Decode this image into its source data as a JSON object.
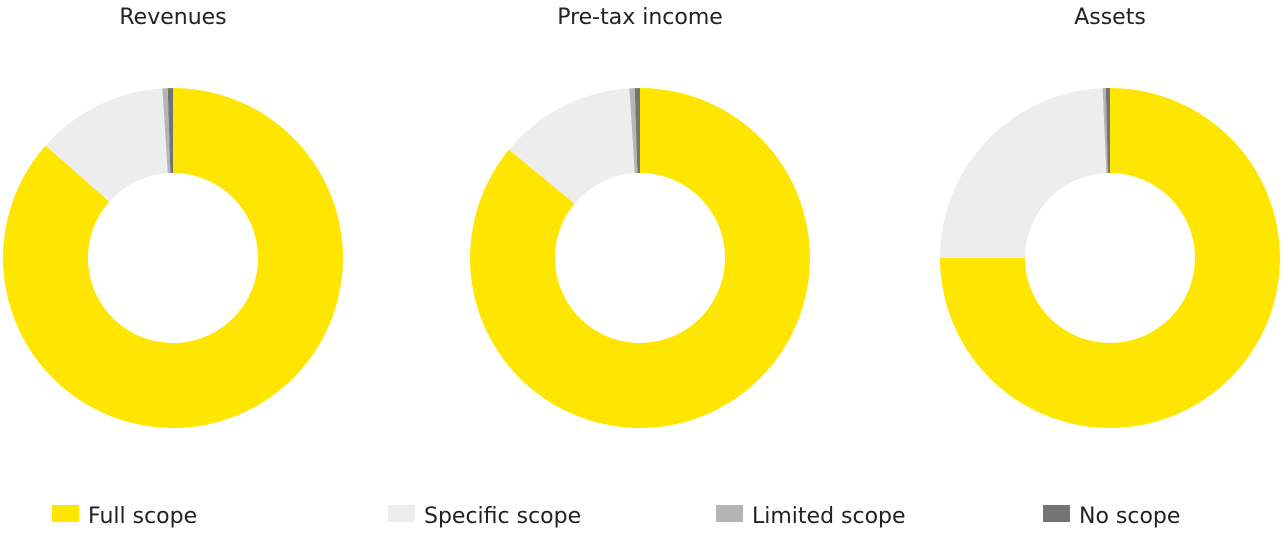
{
  "chart_data": [
    {
      "type": "pie",
      "title": "Revenues",
      "categories": [
        "Full scope",
        "Specific scope",
        "Limited scope",
        "No scope"
      ],
      "values": [
        86.5,
        12.5,
        0.5,
        0.5
      ],
      "colors": [
        "#ffe600",
        "#ededed",
        "#b5b5b5",
        "#747474"
      ]
    },
    {
      "type": "pie",
      "title": "Pre-tax income",
      "categories": [
        "Full scope",
        "Specific scope",
        "Limited scope",
        "No scope"
      ],
      "values": [
        86,
        13,
        0.5,
        0.5
      ],
      "colors": [
        "#ffe600",
        "#ededed",
        "#b5b5b5",
        "#747474"
      ]
    },
    {
      "type": "pie",
      "title": "Assets",
      "categories": [
        "Full scope",
        "Specific scope",
        "Limited scope",
        "No scope"
      ],
      "values": [
        75,
        24.3,
        0.3,
        0.4
      ],
      "colors": [
        "#ffe600",
        "#ededed",
        "#b5b5b5",
        "#747474"
      ]
    }
  ]
}
